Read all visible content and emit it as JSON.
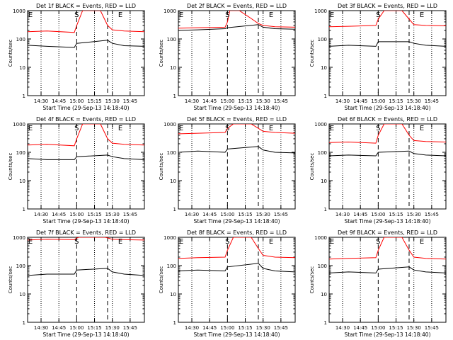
{
  "figure": {
    "start_time_label": "Start Time (29-Sep-13 14:18:40)",
    "ylabel": "Counts/sec",
    "marker_labels": {
      "start": "S",
      "end": "E"
    },
    "colors": {
      "events": "#000000",
      "lld": "#ff0000",
      "axes": "#000000"
    }
  },
  "chart_data": [
    {
      "type": "line",
      "title": "Det 1f BLACK = Events, RED = LLD",
      "xlabel": "Start Time (29-Sep-13 14:18:40)",
      "ylabel": "Counts/sec",
      "y_scale": "log",
      "ylim": [
        1,
        1000
      ],
      "xlim": [
        "14:18:40",
        "15:57:00"
      ],
      "x_ticks": [
        "14:30",
        "14:45",
        "15:00",
        "15:15",
        "15:30",
        "15:45"
      ],
      "y_ticks": [
        1,
        10,
        100,
        1000
      ],
      "dotted_times": [
        "14:30",
        "14:45",
        "15:15",
        "15:30",
        "15:45"
      ],
      "dashed_times": [
        "15:00",
        "15:26"
      ],
      "S_time": "15:00",
      "E_time": "15:26",
      "series": [
        {
          "name": "Events",
          "color": "#000000",
          "x": [
            "14:18:40",
            "14:35",
            "14:58",
            "15:00",
            "15:26",
            "15:30",
            "15:40",
            "15:57"
          ],
          "y": [
            60,
            55,
            50,
            70,
            90,
            70,
            58,
            55
          ]
        },
        {
          "name": "LLD",
          "color": "#ff0000",
          "x": [
            "14:18:40",
            "14:35",
            "14:58",
            "15:00",
            "15:05",
            "15:20",
            "15:26",
            "15:30",
            "15:40",
            "15:57"
          ],
          "y": [
            180,
            190,
            170,
            300,
            1000,
            1000,
            300,
            210,
            190,
            180
          ]
        }
      ]
    },
    {
      "type": "line",
      "title": "Det 2f BLACK = Events, RED = LLD",
      "xlabel": "Start Time (29-Sep-13 14:18:40)",
      "ylabel": "Counts/sec",
      "y_scale": "log",
      "ylim": [
        1,
        1000
      ],
      "xlim": [
        "14:18:40",
        "15:57:00"
      ],
      "x_ticks": [
        "14:30",
        "14:45",
        "15:00",
        "15:15",
        "15:30",
        "15:45"
      ],
      "y_ticks": [
        1,
        10,
        100,
        1000
      ],
      "dotted_times": [
        "14:30",
        "14:45",
        "15:15",
        "15:30",
        "15:45"
      ],
      "dashed_times": [
        "15:00",
        "15:26"
      ],
      "S_time": "15:00",
      "E_time": "15:26",
      "series": [
        {
          "name": "Events",
          "color": "#000000",
          "x": [
            "14:18:40",
            "14:35",
            "14:58",
            "15:00",
            "15:26",
            "15:30",
            "15:40",
            "15:57"
          ],
          "y": [
            200,
            210,
            230,
            250,
            320,
            260,
            230,
            220
          ]
        },
        {
          "name": "LLD",
          "color": "#ff0000",
          "x": [
            "14:18:40",
            "14:35",
            "14:58",
            "15:00",
            "15:02",
            "15:10",
            "15:18",
            "15:26",
            "15:30",
            "15:40",
            "15:57"
          ],
          "y": [
            240,
            250,
            260,
            400,
            1000,
            1000,
            600,
            350,
            300,
            270,
            260
          ]
        }
      ]
    },
    {
      "type": "line",
      "title": "Det 3f BLACK = Events, RED = LLD",
      "xlabel": "Start Time (29-Sep-13 14:18:40)",
      "ylabel": "Counts/sec",
      "y_scale": "log",
      "ylim": [
        1,
        1000
      ],
      "xlim": [
        "14:18:40",
        "15:57:00"
      ],
      "x_ticks": [
        "14:30",
        "14:45",
        "15:00",
        "15:15",
        "15:30",
        "15:45"
      ],
      "y_ticks": [
        1,
        10,
        100,
        1000
      ],
      "dotted_times": [
        "14:30",
        "14:45",
        "15:15",
        "15:30",
        "15:45"
      ],
      "dashed_times": [
        "15:00",
        "15:26"
      ],
      "S_time": "15:00",
      "E_time": "15:26",
      "series": [
        {
          "name": "Events",
          "color": "#000000",
          "x": [
            "14:18:40",
            "14:35",
            "14:58",
            "15:00",
            "15:26",
            "15:30",
            "15:40",
            "15:57"
          ],
          "y": [
            55,
            60,
            55,
            80,
            80,
            70,
            60,
            55
          ]
        },
        {
          "name": "LLD",
          "color": "#ff0000",
          "x": [
            "14:18:40",
            "14:35",
            "14:58",
            "15:00",
            "15:05",
            "15:20",
            "15:26",
            "15:30",
            "15:40",
            "15:57"
          ],
          "y": [
            270,
            280,
            300,
            500,
            1000,
            1000,
            500,
            320,
            300,
            290
          ]
        }
      ]
    },
    {
      "type": "line",
      "title": "Det 4f BLACK = Events, RED = LLD",
      "xlabel": "Start Time (29-Sep-13 14:18:40)",
      "ylabel": "Counts/sec",
      "y_scale": "log",
      "ylim": [
        1,
        1000
      ],
      "xlim": [
        "14:18:40",
        "15:57:00"
      ],
      "x_ticks": [
        "14:30",
        "14:45",
        "15:00",
        "15:15",
        "15:30",
        "15:45"
      ],
      "y_ticks": [
        1,
        10,
        100,
        1000
      ],
      "dotted_times": [
        "14:30",
        "14:45",
        "15:15",
        "15:30",
        "15:45"
      ],
      "dashed_times": [
        "15:00",
        "15:26"
      ],
      "S_time": "15:00",
      "E_time": "15:26",
      "series": [
        {
          "name": "Events",
          "color": "#000000",
          "x": [
            "14:18:40",
            "14:35",
            "14:58",
            "15:00",
            "15:26",
            "15:30",
            "15:40",
            "15:57"
          ],
          "y": [
            60,
            55,
            55,
            70,
            80,
            70,
            60,
            55
          ]
        },
        {
          "name": "LLD",
          "color": "#ff0000",
          "x": [
            "14:18:40",
            "14:35",
            "14:58",
            "15:00",
            "15:05",
            "15:20",
            "15:26",
            "15:30",
            "15:40",
            "15:57"
          ],
          "y": [
            180,
            190,
            170,
            300,
            1000,
            1000,
            300,
            210,
            190,
            180
          ]
        }
      ]
    },
    {
      "type": "line",
      "title": "Det 5f BLACK = Events, RED = LLD",
      "xlabel": "Start Time (29-Sep-13 14:18:40)",
      "ylabel": "Counts/sec",
      "y_scale": "log",
      "ylim": [
        1,
        1000
      ],
      "xlim": [
        "14:18:40",
        "15:57:00"
      ],
      "x_ticks": [
        "14:30",
        "14:45",
        "15:00",
        "15:15",
        "15:30",
        "15:45"
      ],
      "y_ticks": [
        1,
        10,
        100,
        1000
      ],
      "dotted_times": [
        "14:30",
        "14:45",
        "15:15",
        "15:30",
        "15:45"
      ],
      "dashed_times": [
        "15:00",
        "15:26"
      ],
      "S_time": "15:00",
      "E_time": "15:26",
      "series": [
        {
          "name": "Events",
          "color": "#000000",
          "x": [
            "14:18:40",
            "14:35",
            "14:58",
            "15:00",
            "15:26",
            "15:30",
            "15:40",
            "15:57"
          ],
          "y": [
            100,
            110,
            100,
            130,
            160,
            120,
            100,
            95
          ]
        },
        {
          "name": "LLD",
          "color": "#ff0000",
          "x": [
            "14:18:40",
            "14:35",
            "14:58",
            "15:00",
            "15:05",
            "15:20",
            "15:26",
            "15:30",
            "15:40",
            "15:57"
          ],
          "y": [
            450,
            470,
            500,
            700,
            1000,
            1000,
            700,
            550,
            500,
            470
          ]
        }
      ]
    },
    {
      "type": "line",
      "title": "Det 6f BLACK = Events, RED = LLD",
      "xlabel": "Start Time (29-Sep-13 14:18:40)",
      "ylabel": "Counts/sec",
      "y_scale": "log",
      "ylim": [
        1,
        1000
      ],
      "xlim": [
        "14:18:40",
        "15:57:00"
      ],
      "x_ticks": [
        "14:30",
        "14:45",
        "15:00",
        "15:15",
        "15:30",
        "15:45"
      ],
      "y_ticks": [
        1,
        10,
        100,
        1000
      ],
      "dotted_times": [
        "14:30",
        "14:45",
        "15:15",
        "15:30",
        "15:45"
      ],
      "dashed_times": [
        "15:00",
        "15:26"
      ],
      "S_time": "15:00",
      "E_time": "15:26",
      "series": [
        {
          "name": "Events",
          "color": "#000000",
          "x": [
            "14:18:40",
            "14:35",
            "14:58",
            "15:00",
            "15:26",
            "15:30",
            "15:40",
            "15:57"
          ],
          "y": [
            75,
            80,
            75,
            100,
            110,
            90,
            80,
            75
          ]
        },
        {
          "name": "LLD",
          "color": "#ff0000",
          "x": [
            "14:18:40",
            "14:35",
            "14:58",
            "15:00",
            "15:05",
            "15:20",
            "15:26",
            "15:30",
            "15:40",
            "15:57"
          ],
          "y": [
            220,
            230,
            210,
            400,
            1000,
            1000,
            400,
            260,
            240,
            230
          ]
        }
      ]
    },
    {
      "type": "line",
      "title": "Det 7f BLACK = Events, RED = LLD",
      "xlabel": "Start Time (29-Sep-13 14:18:40)",
      "ylabel": "Counts/sec",
      "y_scale": "log",
      "ylim": [
        1,
        1000
      ],
      "xlim": [
        "14:18:40",
        "15:57:00"
      ],
      "x_ticks": [
        "14:30",
        "14:45",
        "15:00",
        "15:15",
        "15:30",
        "15:45"
      ],
      "y_ticks": [
        1,
        10,
        100,
        1000
      ],
      "dotted_times": [
        "14:30",
        "14:45",
        "15:15",
        "15:30",
        "15:45"
      ],
      "dashed_times": [
        "15:00",
        "15:26"
      ],
      "S_time": "15:00",
      "E_time": "15:26",
      "series": [
        {
          "name": "Events",
          "color": "#000000",
          "x": [
            "14:18:40",
            "14:35",
            "14:58",
            "15:00",
            "15:26",
            "15:30",
            "15:40",
            "15:57"
          ],
          "y": [
            45,
            50,
            50,
            70,
            80,
            60,
            50,
            45
          ]
        },
        {
          "name": "LLD",
          "color": "#ff0000",
          "x": [
            "14:18:40",
            "14:35",
            "14:58",
            "15:00",
            "15:02",
            "15:24",
            "15:26",
            "15:30",
            "15:40",
            "15:57"
          ],
          "y": [
            800,
            850,
            820,
            950,
            1000,
            1000,
            950,
            850,
            820,
            800
          ]
        }
      ]
    },
    {
      "type": "line",
      "title": "Det 8f BLACK = Events, RED = LLD",
      "xlabel": "Start Time (29-Sep-13 14:18:40)",
      "ylabel": "Counts/sec",
      "y_scale": "log",
      "ylim": [
        1,
        1000
      ],
      "xlim": [
        "14:18:40",
        "15:57:00"
      ],
      "x_ticks": [
        "14:30",
        "14:45",
        "15:00",
        "15:15",
        "15:30",
        "15:45"
      ],
      "y_ticks": [
        1,
        10,
        100,
        1000
      ],
      "dotted_times": [
        "14:30",
        "14:45",
        "15:15",
        "15:30",
        "15:45"
      ],
      "dashed_times": [
        "15:00",
        "15:26"
      ],
      "S_time": "15:00",
      "E_time": "15:26",
      "series": [
        {
          "name": "Events",
          "color": "#000000",
          "x": [
            "14:18:40",
            "14:35",
            "14:58",
            "15:00",
            "15:26",
            "15:30",
            "15:40",
            "15:57"
          ],
          "y": [
            65,
            70,
            65,
            90,
            120,
            80,
            65,
            60
          ]
        },
        {
          "name": "LLD",
          "color": "#ff0000",
          "x": [
            "14:18:40",
            "14:35",
            "14:58",
            "15:00",
            "15:05",
            "15:20",
            "15:26",
            "15:30",
            "15:40",
            "15:57"
          ],
          "y": [
            180,
            190,
            200,
            350,
            1000,
            1000,
            400,
            230,
            200,
            190
          ]
        }
      ]
    },
    {
      "type": "line",
      "title": "Det 9f BLACK = Events, RED = LLD",
      "xlabel": "Start Time (29-Sep-13 14:18:40)",
      "ylabel": "Counts/sec",
      "y_scale": "log",
      "ylim": [
        1,
        1000
      ],
      "xlim": [
        "14:18:40",
        "15:57:00"
      ],
      "x_ticks": [
        "14:30",
        "14:45",
        "15:00",
        "15:15",
        "15:30",
        "15:45"
      ],
      "y_ticks": [
        1,
        10,
        100,
        1000
      ],
      "dotted_times": [
        "14:30",
        "14:45",
        "15:15",
        "15:30",
        "15:45"
      ],
      "dashed_times": [
        "15:00",
        "15:26"
      ],
      "S_time": "15:00",
      "E_time": "15:26",
      "series": [
        {
          "name": "Events",
          "color": "#000000",
          "x": [
            "14:18:40",
            "14:35",
            "14:58",
            "15:00",
            "15:26",
            "15:30",
            "15:40",
            "15:57"
          ],
          "y": [
            55,
            60,
            55,
            75,
            90,
            70,
            60,
            55
          ]
        },
        {
          "name": "LLD",
          "color": "#ff0000",
          "x": [
            "14:18:40",
            "14:35",
            "14:58",
            "15:00",
            "15:05",
            "15:20",
            "15:26",
            "15:30",
            "15:40",
            "15:57"
          ],
          "y": [
            170,
            180,
            190,
            350,
            1000,
            1000,
            350,
            200,
            180,
            170
          ]
        }
      ]
    }
  ]
}
